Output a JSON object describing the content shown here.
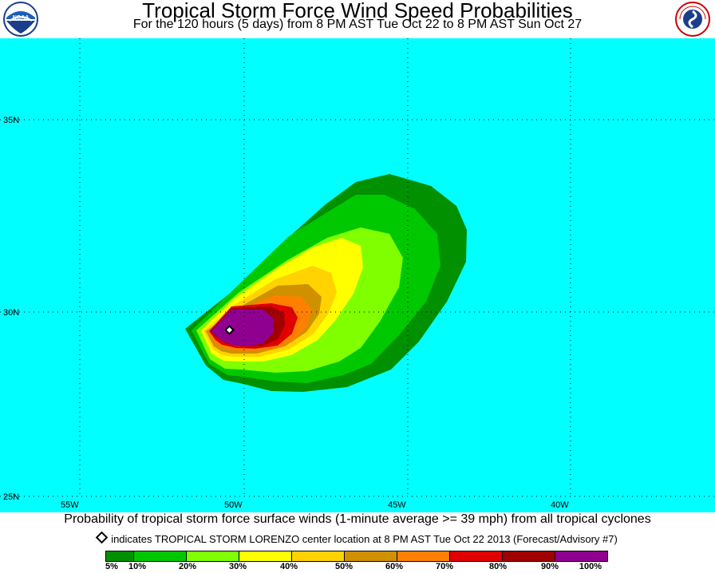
{
  "header": {
    "title": "Tropical Storm Force Wind Speed Probabilities",
    "subtitle": "For the 120 hours (5 days) from 8 PM AST Tue Oct 22 to 8 PM AST Sun Oct 27",
    "left_logo": {
      "text": "NOAA",
      "icon": "noaa-logo"
    },
    "right_logo": {
      "text": "NATIONAL WEATHER SERVICE",
      "icon": "nws-logo"
    }
  },
  "map": {
    "background_color": "#00ffff",
    "longitude_labels": [
      "55W",
      "50W",
      "45W",
      "40W"
    ],
    "latitude_labels": [
      "35N",
      "30N",
      "25N"
    ],
    "storm_center": {
      "icon": "storm-center-diamond-icon"
    }
  },
  "caption": "Probability of tropical storm force surface winds (1-minute average >= 39 mph) from all tropical cyclones",
  "legend": {
    "note": "indicates TROPICAL STORM LORENZO center location at 8 PM AST Tue Oct 22 2013 (Forecast/Advisory #7)",
    "colors": [
      "#009000",
      "#00c800",
      "#80ff00",
      "#ffff00",
      "#ffd200",
      "#d09000",
      "#ff8000",
      "#e00000",
      "#a00000",
      "#900090"
    ],
    "labels": [
      "5%",
      "10%",
      "20%",
      "30%",
      "40%",
      "50%",
      "60%",
      "70%",
      "80%",
      "90%",
      "100%"
    ]
  }
}
